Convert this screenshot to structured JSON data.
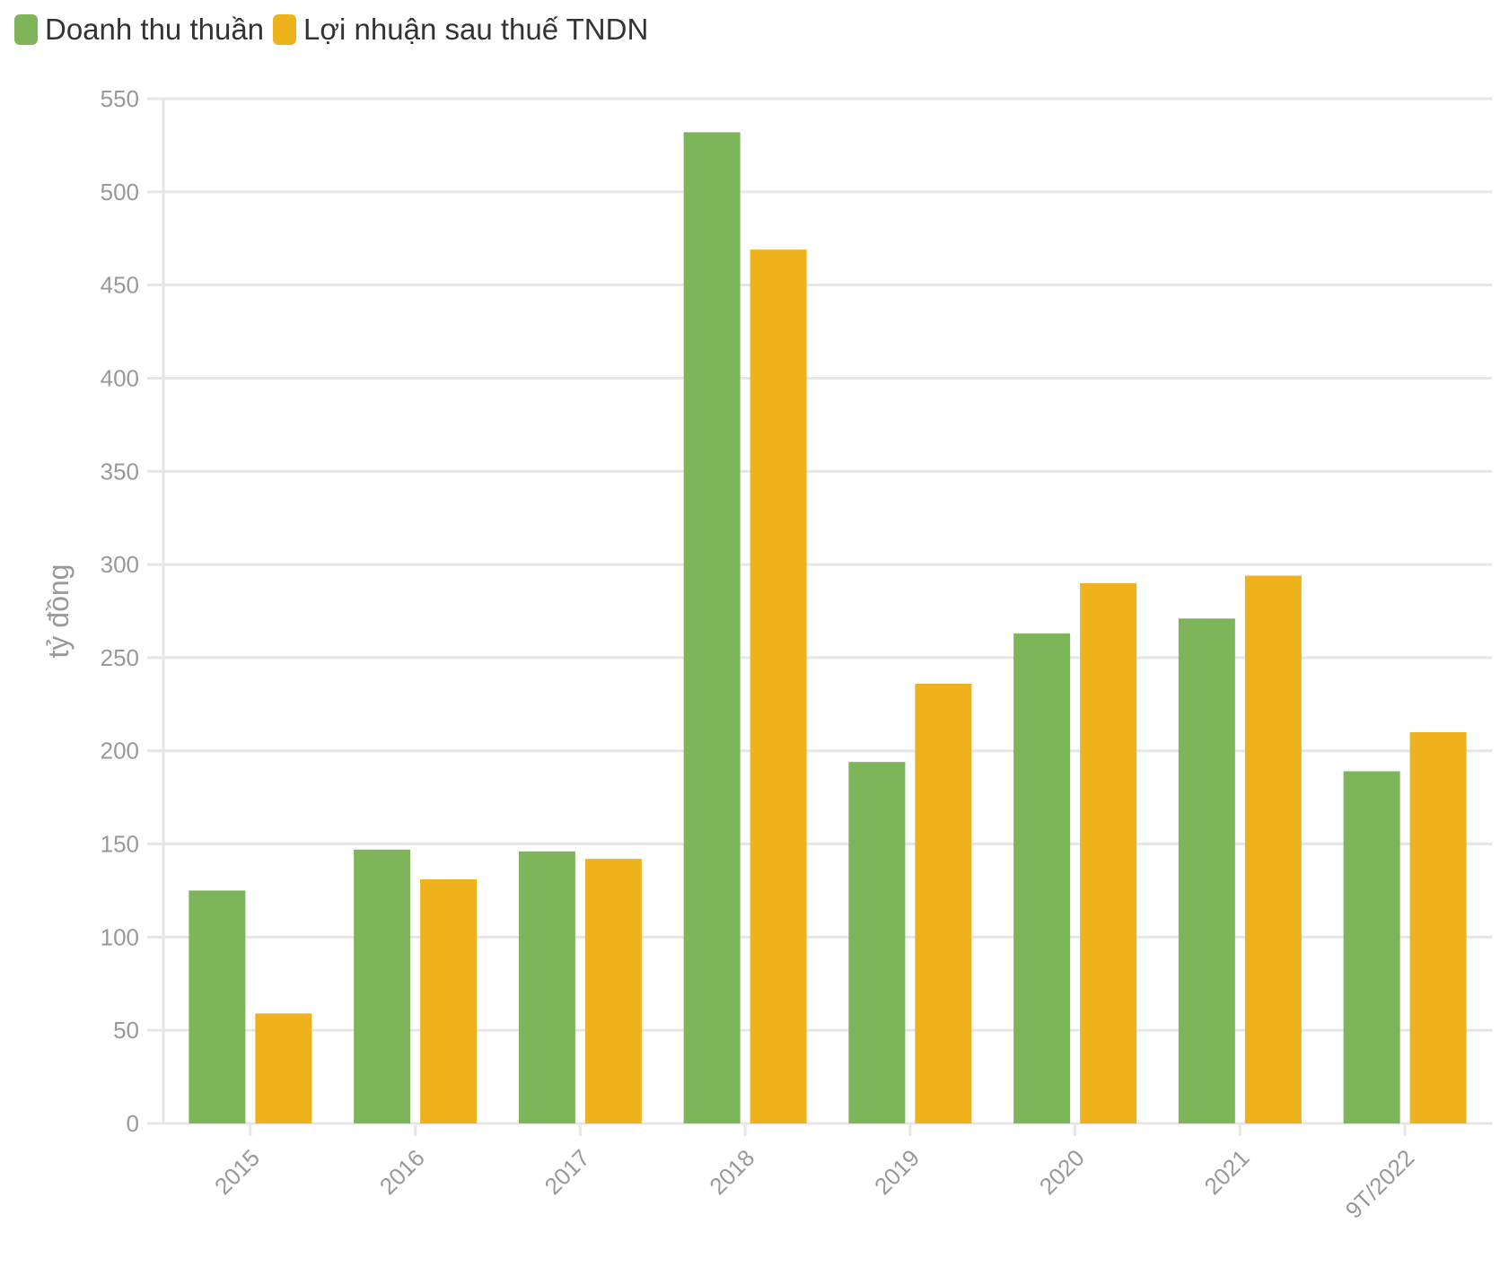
{
  "legend": {
    "series_0": "Doanh thu thuần",
    "series_1": "Lợi nhuận sau thuế TNDN"
  },
  "colors": {
    "series_0": "#7fb55a",
    "series_1": "#eeb21c",
    "grid": "#e6e6e6",
    "tick_text": "#999999"
  },
  "chart_data": {
    "type": "bar",
    "ylabel": "tỷ đồng",
    "xlabel": "",
    "ylim": [
      0,
      550
    ],
    "yticks": [
      0,
      50,
      100,
      150,
      200,
      250,
      300,
      350,
      400,
      450,
      500,
      550
    ],
    "categories": [
      "2015",
      "2016",
      "2017",
      "2018",
      "2019",
      "2020",
      "2021",
      "9T/2022"
    ],
    "series": [
      {
        "name": "Doanh thu thuần",
        "values": [
          125,
          147,
          146,
          532,
          194,
          263,
          271,
          189
        ]
      },
      {
        "name": "Lợi nhuận sau thuế TNDN",
        "values": [
          59,
          131,
          142,
          469,
          236,
          290,
          294,
          210
        ]
      }
    ],
    "grid": true,
    "legend_position": "top-left"
  }
}
